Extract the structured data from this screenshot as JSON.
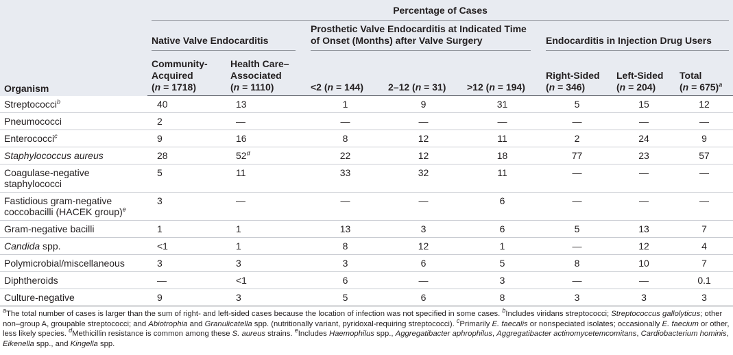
{
  "table": {
    "corner": "Organism",
    "top_header": "Percentage of Cases",
    "groups": [
      {
        "label": "Native Valve Endocarditis",
        "span": 2
      },
      {
        "label": "Prosthetic Valve Endocarditis at Indicated Time of Onset (Months) after Valve Surgery",
        "span": 3
      },
      {
        "label": "Endocarditis in Injection Drug Users",
        "span": 3
      }
    ],
    "columns": [
      {
        "label": [
          "Community-Acquired"
        ],
        "count": [
          "(",
          {
            "text": "n",
            "style": "italic"
          },
          " = 1718)"
        ]
      },
      {
        "label": [
          "Health Care–Associated"
        ],
        "count": [
          "(",
          {
            "text": "n",
            "style": "italic"
          },
          " = 1110)"
        ]
      },
      {
        "label": [
          "<2"
        ],
        "count": [
          "(",
          {
            "text": "n",
            "style": "italic"
          },
          " = 144)"
        ]
      },
      {
        "label": [
          "2–12"
        ],
        "count": [
          "(",
          {
            "text": "n",
            "style": "italic"
          },
          " = 31)"
        ]
      },
      {
        "label": [
          ">12"
        ],
        "count": [
          "(",
          {
            "text": "n",
            "style": "italic"
          },
          " = 194)"
        ]
      },
      {
        "label": [
          "Right-Sided"
        ],
        "count": [
          "(",
          {
            "text": "n",
            "style": "italic"
          },
          " = 346)"
        ]
      },
      {
        "label": [
          "Left-Sided"
        ],
        "count": [
          "(",
          {
            "text": "n",
            "style": "italic"
          },
          " = 204)"
        ]
      },
      {
        "label": [
          "Total"
        ],
        "count": [
          "(",
          {
            "text": "n",
            "style": "italic"
          },
          " = 675)",
          {
            "text": "a",
            "style": "sup"
          }
        ]
      }
    ],
    "rows": [
      {
        "organism": [
          "Streptococci",
          {
            "text": "b",
            "style": "sup"
          }
        ],
        "values": [
          "40",
          "13",
          "1",
          "9",
          "31",
          "5",
          "15",
          "12"
        ]
      },
      {
        "organism": [
          "Pneumococci"
        ],
        "values": [
          "2",
          "—",
          "—",
          "—",
          "—",
          "—",
          "—",
          "—"
        ]
      },
      {
        "organism": [
          "Enterococci",
          {
            "text": "c",
            "style": "sup"
          }
        ],
        "values": [
          "9",
          "16",
          "8",
          "12",
          "11",
          "2",
          "24",
          "9"
        ]
      },
      {
        "organism": [
          {
            "text": "Staphylococcus aureus",
            "style": "italic"
          }
        ],
        "values": [
          "28",
          [
            "52",
            {
              "text": "d",
              "style": "sup"
            }
          ],
          "22",
          "12",
          "18",
          "77",
          "23",
          "57"
        ]
      },
      {
        "organism": [
          "Coagulase-negative staphylococci"
        ],
        "values": [
          "5",
          "11",
          "33",
          "32",
          "11",
          "—",
          "—",
          "—"
        ]
      },
      {
        "organism": [
          "Fastidious gram-negative coccobacilli (HACEK group)",
          {
            "text": "e",
            "style": "sup"
          }
        ],
        "values": [
          "3",
          "—",
          "—",
          "—",
          "6",
          "—",
          "—",
          "—"
        ]
      },
      {
        "organism": [
          "Gram-negative bacilli"
        ],
        "values": [
          "1",
          "1",
          "13",
          "3",
          "6",
          "5",
          "13",
          "7"
        ]
      },
      {
        "organism": [
          {
            "text": "Candida",
            "style": "italic"
          },
          " spp."
        ],
        "values": [
          "<1",
          "1",
          "8",
          "12",
          "1",
          "—",
          "12",
          "4"
        ]
      },
      {
        "organism": [
          "Polymicrobial/miscellaneous"
        ],
        "values": [
          "3",
          "3",
          "3",
          "6",
          "5",
          "8",
          "10",
          "7"
        ]
      },
      {
        "organism": [
          "Diphtheroids"
        ],
        "values": [
          "—",
          "<1",
          "6",
          "—",
          "3",
          "—",
          "—",
          "0.1"
        ]
      },
      {
        "organism": [
          "Culture-negative"
        ],
        "values": [
          "9",
          "3",
          "5",
          "6",
          "8",
          "3",
          "3",
          "3"
        ]
      }
    ],
    "footnotes": [
      [
        {
          "text": "a",
          "style": "sup"
        },
        "The total number of cases is larger than the sum of right- and left-sided cases because the location of infection was not specified in some cases. "
      ],
      [
        {
          "text": "b",
          "style": "sup"
        },
        "Includes viridans streptococci; ",
        {
          "text": "Streptococcus gallolyticus",
          "style": "italic"
        },
        "; other non–group A, groupable streptococci; and ",
        {
          "text": "Abiotrophia",
          "style": "italic"
        },
        " and ",
        {
          "text": "Granulicatella",
          "style": "italic"
        },
        " spp. (nutritionally variant, pyridoxal-requiring streptococci). "
      ],
      [
        {
          "text": "c",
          "style": "sup"
        },
        "Primarily ",
        {
          "text": "E. faecalis",
          "style": "italic"
        },
        " or nonspeciated isolates; occasionally ",
        {
          "text": "E. faecium",
          "style": "italic"
        },
        " or other, less likely species. "
      ],
      [
        {
          "text": "d",
          "style": "sup"
        },
        "Methicillin resistance is common among these ",
        {
          "text": "S. aureus",
          "style": "italic"
        },
        " strains. "
      ],
      [
        {
          "text": "e",
          "style": "sup"
        },
        "Includes ",
        {
          "text": "Haemophilus",
          "style": "italic"
        },
        " spp., ",
        {
          "text": "Aggregatibacter aphrophilus",
          "style": "italic"
        },
        ", ",
        {
          "text": "Aggregatibacter actinomycetemcomitans",
          "style": "italic"
        },
        ", ",
        {
          "text": "Cardiobacterium hominis",
          "style": "italic"
        },
        ", ",
        {
          "text": "Eikenella",
          "style": "italic"
        },
        " spp., and ",
        {
          "text": "Kingella",
          "style": "italic"
        },
        " spp."
      ]
    ]
  }
}
